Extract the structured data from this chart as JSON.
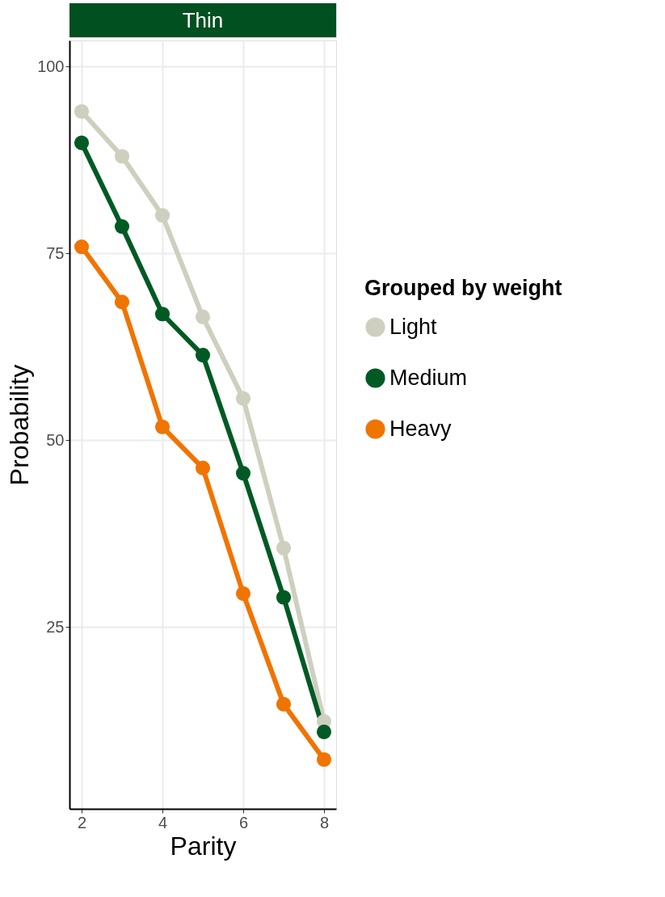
{
  "chart_data": {
    "type": "line",
    "title": "Thin",
    "xlabel": "Parity",
    "ylabel": "Probability",
    "legend_title": "Grouped by weight",
    "x": [
      2,
      3,
      4,
      5,
      6,
      7,
      8
    ],
    "series": [
      {
        "name": "Light",
        "color": "#cfcfbf",
        "values": [
          94.0,
          88.0,
          80.1,
          66.5,
          55.6,
          35.6,
          12.4
        ]
      },
      {
        "name": "Medium",
        "color": "#005a24",
        "values": [
          89.8,
          78.6,
          66.9,
          61.4,
          45.6,
          29.0,
          11.0
        ]
      },
      {
        "name": "Heavy",
        "color": "#f07400",
        "values": [
          75.9,
          68.5,
          51.8,
          46.3,
          29.5,
          14.7,
          7.3
        ]
      }
    ],
    "xlim": [
      1.7,
      8.3
    ],
    "xticks": [
      2,
      4,
      6,
      8
    ],
    "ylim": [
      0.7,
      103.5
    ],
    "yticks": [
      25,
      50,
      75,
      100
    ],
    "grid": true,
    "legend": "right",
    "marker": "circle",
    "line_style": "solid"
  }
}
